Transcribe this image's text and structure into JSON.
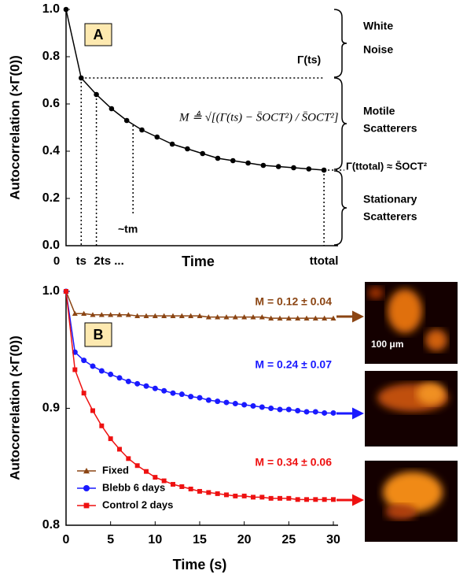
{
  "chart_data": [
    {
      "type": "line",
      "panel": "A",
      "y_label": "Autocorrelation (×Γ(0))",
      "x_label": "Time",
      "categories": [
        "0",
        "ts",
        "2ts ...",
        null,
        null,
        null,
        null,
        null,
        null,
        null,
        null,
        null,
        null,
        null,
        null,
        null,
        null,
        "ttotal"
      ],
      "values": [
        1.0,
        0.71,
        0.64,
        0.58,
        0.53,
        0.49,
        0.46,
        0.43,
        0.41,
        0.39,
        0.37,
        0.36,
        0.35,
        0.34,
        0.335,
        0.33,
        0.325,
        0.32
      ],
      "color": "#000000",
      "ylim": [
        0,
        1
      ],
      "yticks": [
        {
          "value": 0,
          "label": "0.0"
        },
        0.2,
        0.4,
        0.6,
        0.8,
        {
          "value": 1,
          "label": "1.0"
        }
      ],
      "annotations": {
        "gamma_ts": "Γ(ts)",
        "tm": "~tm",
        "formula": "M ≜ √[(Γ(ts) − S̄OCT²) / S̄OCT²]",
        "white_noise": [
          "White",
          "Noise"
        ],
        "motile": [
          "Motile",
          "Scatterers"
        ],
        "stationary": [
          "Stationary",
          "Scatterers"
        ],
        "gamma_total": "Γ(ttotal) ≈ S̄OCT²"
      }
    },
    {
      "type": "line",
      "panel": "B",
      "y_label": "Autocorrelation (×Γ(0))",
      "x_label": "Time (s)",
      "x": [
        0,
        1,
        2,
        3,
        4,
        5,
        6,
        7,
        8,
        9,
        10,
        11,
        12,
        13,
        14,
        15,
        16,
        17,
        18,
        19,
        20,
        21,
        22,
        23,
        24,
        25,
        26,
        27,
        28,
        29,
        30
      ],
      "xlim": [
        0,
        30
      ],
      "xticks": [
        0,
        5,
        10,
        15,
        20,
        25,
        30
      ],
      "ylim": [
        0.8,
        1.0
      ],
      "yticks": [
        0.8,
        0.9,
        {
          "value": 1.0,
          "label": "1.0"
        }
      ],
      "legend": "lower left",
      "series": [
        {
          "name": "Fixed",
          "color": "#8b4513",
          "marker": "triangle",
          "annotation": "M = 0.12 ± 0.04",
          "values": [
            1.0,
            0.981,
            0.981,
            0.98,
            0.98,
            0.98,
            0.98,
            0.98,
            0.979,
            0.979,
            0.979,
            0.979,
            0.979,
            0.979,
            0.979,
            0.979,
            0.978,
            0.978,
            0.978,
            0.978,
            0.978,
            0.978,
            0.978,
            0.977,
            0.977,
            0.977,
            0.977,
            0.977,
            0.977,
            0.977,
            0.977
          ]
        },
        {
          "name": "Blebb 6 days",
          "color": "#1a1aff",
          "marker": "circle",
          "annotation": "M = 0.24 ± 0.07",
          "values": [
            1.0,
            0.948,
            0.941,
            0.936,
            0.932,
            0.929,
            0.926,
            0.923,
            0.921,
            0.919,
            0.917,
            0.915,
            0.913,
            0.912,
            0.91,
            0.909,
            0.907,
            0.906,
            0.905,
            0.904,
            0.903,
            0.902,
            0.901,
            0.9,
            0.899,
            0.899,
            0.898,
            0.897,
            0.897,
            0.896,
            0.896
          ]
        },
        {
          "name": "Control 2 days",
          "color": "#ee1111",
          "marker": "square",
          "annotation": "M = 0.34 ± 0.06",
          "values": [
            1.0,
            0.933,
            0.913,
            0.898,
            0.885,
            0.874,
            0.865,
            0.857,
            0.851,
            0.846,
            0.841,
            0.838,
            0.835,
            0.833,
            0.831,
            0.829,
            0.828,
            0.827,
            0.826,
            0.825,
            0.825,
            0.824,
            0.824,
            0.823,
            0.823,
            0.823,
            0.822,
            0.822,
            0.822,
            0.822,
            0.822
          ]
        }
      ],
      "scale_bar": "100 μm"
    }
  ]
}
